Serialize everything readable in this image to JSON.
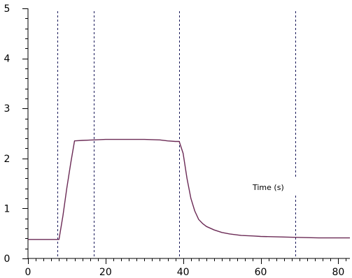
{
  "chart_data": {
    "type": "line",
    "title": "",
    "xlabel": "Time (s)",
    "ylabel": "",
    "xlim": [
      0,
      83
    ],
    "ylim": [
      0,
      5
    ],
    "x_ticks": [
      0,
      20,
      40,
      60,
      80
    ],
    "x_tick_labels": [
      "0",
      "20",
      "40",
      "60",
      "80"
    ],
    "y_ticks": [
      0,
      1,
      2,
      3,
      4,
      5
    ],
    "y_tick_labels": [
      "0",
      "1",
      "2",
      "3",
      "4",
      "5"
    ],
    "x_minor_step": 2,
    "y_minor_step": 0.2,
    "grid": false,
    "legend": "none",
    "series_color": "#6b2a55",
    "marker_color": "#1a1a5a",
    "vertical_markers": [
      7.5,
      17,
      39,
      69
    ],
    "series": [
      {
        "name": "",
        "x": [
          0,
          7,
          8,
          9,
          10,
          11,
          12,
          14,
          17,
          20,
          25,
          30,
          34,
          36,
          38,
          39,
          40,
          41,
          42,
          43,
          44,
          45,
          46,
          48,
          50,
          52,
          55,
          58,
          60,
          65,
          70,
          75,
          80,
          83
        ],
        "y": [
          0.38,
          0.38,
          0.38,
          0.85,
          1.4,
          1.9,
          2.35,
          2.36,
          2.37,
          2.38,
          2.38,
          2.38,
          2.37,
          2.35,
          2.34,
          2.34,
          2.1,
          1.6,
          1.2,
          0.95,
          0.78,
          0.7,
          0.64,
          0.57,
          0.52,
          0.49,
          0.46,
          0.45,
          0.44,
          0.43,
          0.42,
          0.41,
          0.41,
          0.41
        ]
      }
    ]
  }
}
